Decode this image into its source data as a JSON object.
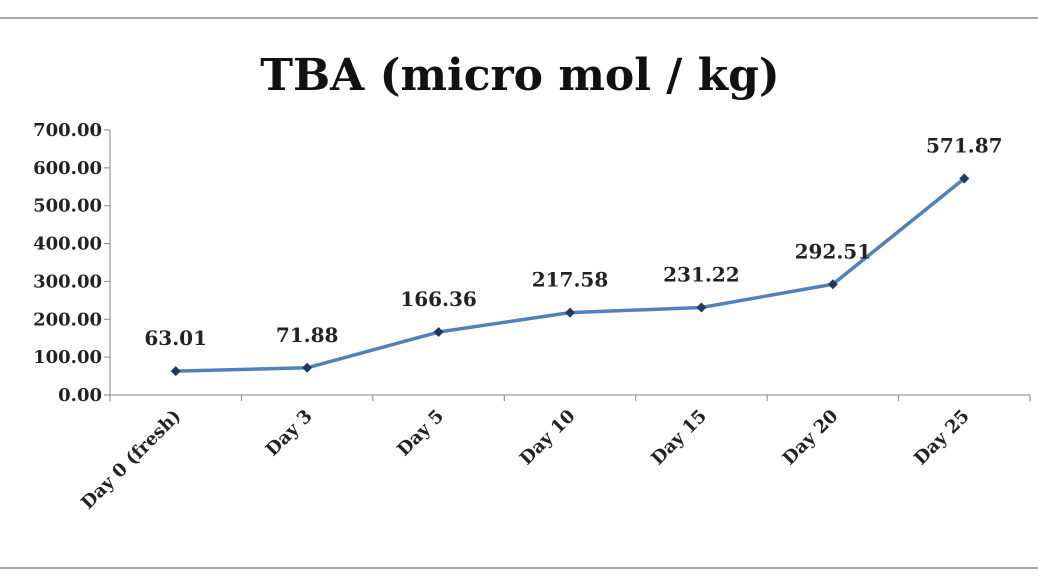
{
  "chart_data": {
    "type": "line",
    "title": "TBA (micro mol / kg)",
    "xlabel": "",
    "ylabel": "",
    "categories": [
      "Day 0 (fresh)",
      "Day 3",
      "Day 5",
      "Day 10",
      "Day 15",
      "Day 20",
      "Day 25"
    ],
    "series": [
      {
        "values": [
          63.01,
          71.88,
          166.36,
          217.58,
          231.22,
          292.51,
          571.87
        ]
      }
    ],
    "value_labels": [
      "63.01",
      "71.88",
      "166.36",
      "217.58",
      "231.22",
      "292.51",
      "571.87"
    ],
    "ylim": [
      0,
      700
    ],
    "yticks": [
      "0.00",
      "100.00",
      "200.00",
      "300.00",
      "400.00",
      "500.00",
      "600.00",
      "700.00"
    ],
    "grid": false,
    "legend": "none",
    "line_color": "#4f81bd",
    "marker_color": "#1f3864"
  }
}
